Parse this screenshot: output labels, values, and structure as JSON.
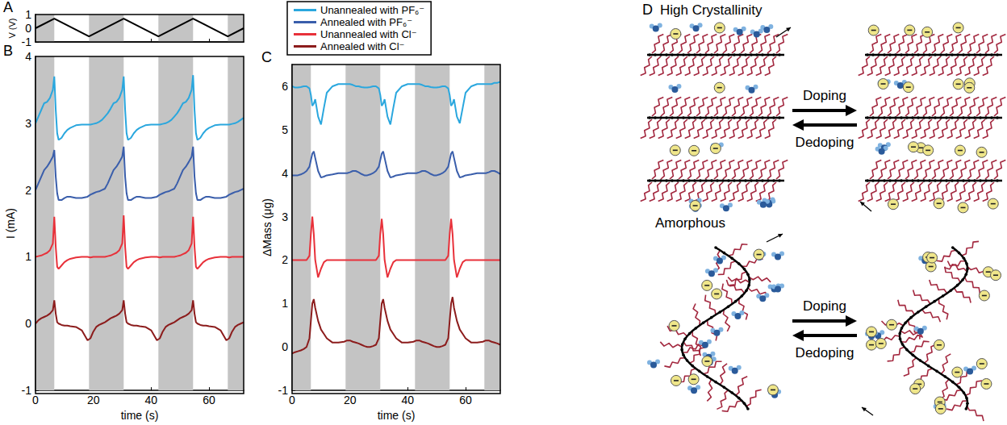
{
  "chart_data": [
    {
      "title": "A",
      "type": "line",
      "ylabel": "V (V)",
      "x": [
        0,
        6.5,
        18.5,
        30.5,
        42.5,
        54.5,
        66.5,
        72
      ],
      "values": [
        0,
        0.7,
        -0.6,
        0.7,
        -0.6,
        0.7,
        -0.6,
        0
      ],
      "color": "#000000",
      "xlim": [
        0,
        72
      ],
      "xticks": [
        0,
        20,
        40,
        60
      ],
      "ylim": [
        -1,
        1
      ],
      "yticks": [
        -1,
        0,
        1
      ],
      "tick_labels": "y",
      "shaded_x_ranges": [
        [
          0,
          6.5
        ],
        [
          18.5,
          30.5
        ],
        [
          42.5,
          54.5
        ],
        [
          66.5,
          72
        ]
      ]
    },
    {
      "title": "B",
      "type": "line",
      "xlabel": "time (s)",
      "ylabel": "I (mA)",
      "x": [
        0,
        1,
        2,
        3,
        4,
        5,
        6,
        6.5,
        7,
        7.5,
        8,
        9,
        10,
        11,
        12,
        14,
        16,
        18,
        19,
        20,
        21,
        22,
        23,
        24,
        25,
        26,
        27,
        28,
        29,
        30,
        30.5,
        31,
        31.5,
        32,
        33,
        34,
        35,
        36,
        38,
        40,
        42,
        43,
        44,
        45,
        46,
        47,
        48,
        49,
        50,
        51,
        52,
        53,
        54,
        54.5,
        55,
        55.5,
        56,
        57,
        58,
        59,
        60,
        62,
        64,
        66,
        67,
        68,
        69,
        70,
        71,
        72
      ],
      "series": [
        {
          "name": "Unannealed with PF₆⁻",
          "color": "#2aa7de",
          "values": [
            3.0,
            3.1,
            3.2,
            3.3,
            3.32,
            3.38,
            3.5,
            3.7,
            3.2,
            2.85,
            2.75,
            2.78,
            2.85,
            2.9,
            2.93,
            2.97,
            2.98,
            2.98,
            2.98,
            2.99,
            3.0,
            3.02,
            3.05,
            3.1,
            3.15,
            3.22,
            3.3,
            3.32,
            3.38,
            3.5,
            3.7,
            3.2,
            2.85,
            2.75,
            2.78,
            2.85,
            2.9,
            2.93,
            2.97,
            2.98,
            2.98,
            2.98,
            2.99,
            3.0,
            3.02,
            3.05,
            3.1,
            3.15,
            3.22,
            3.3,
            3.32,
            3.38,
            3.5,
            3.72,
            3.2,
            2.85,
            2.75,
            2.78,
            2.85,
            2.9,
            2.93,
            2.97,
            2.98,
            2.98,
            2.98,
            2.99,
            3.0,
            3.02,
            3.05,
            3.08
          ]
        },
        {
          "name": "Annealed with PF₆⁻",
          "color": "#3a5eab",
          "values": [
            2.0,
            2.1,
            2.2,
            2.3,
            2.35,
            2.42,
            2.5,
            2.6,
            2.2,
            1.95,
            1.85,
            1.85,
            1.88,
            1.9,
            1.9,
            1.88,
            1.88,
            1.9,
            1.93,
            1.95,
            1.97,
            1.98,
            2.0,
            2.02,
            2.1,
            2.2,
            2.3,
            2.35,
            2.42,
            2.5,
            2.65,
            2.2,
            1.95,
            1.85,
            1.85,
            1.88,
            1.9,
            1.9,
            1.88,
            1.88,
            1.9,
            1.93,
            1.95,
            1.97,
            1.98,
            2.0,
            2.02,
            2.1,
            2.2,
            2.3,
            2.35,
            2.42,
            2.5,
            2.65,
            2.2,
            1.95,
            1.85,
            1.85,
            1.88,
            1.9,
            1.9,
            1.88,
            1.88,
            1.9,
            1.93,
            1.95,
            1.97,
            1.98,
            2.0,
            2.02
          ]
        },
        {
          "name": "Unannealed with Cl⁻",
          "color": "#e8313a",
          "values": [
            1.0,
            1.01,
            1.02,
            1.04,
            1.06,
            1.1,
            1.2,
            1.6,
            1.15,
            0.85,
            0.82,
            0.87,
            0.92,
            0.95,
            0.97,
            0.99,
            1.0,
            1.0,
            0.99,
            1.0,
            1.0,
            1.0,
            1.0,
            1.0,
            1.01,
            1.02,
            1.04,
            1.06,
            1.1,
            1.2,
            1.62,
            1.15,
            0.85,
            0.82,
            0.87,
            0.92,
            0.95,
            0.97,
            0.99,
            1.0,
            1.0,
            0.99,
            1.0,
            1.0,
            1.0,
            1.0,
            1.0,
            1.01,
            1.02,
            1.04,
            1.06,
            1.1,
            1.2,
            1.6,
            1.15,
            0.85,
            0.82,
            0.87,
            0.92,
            0.95,
            0.97,
            0.99,
            1.0,
            1.0,
            0.99,
            1.0,
            1.0,
            1.0,
            1.0,
            1.0
          ]
        },
        {
          "name": "Annealed with Cl⁻",
          "color": "#8c1c1c",
          "values": [
            0.0,
            0.05,
            0.08,
            0.1,
            0.12,
            0.15,
            0.2,
            0.35,
            0.15,
            0.02,
            0.0,
            -0.02,
            -0.03,
            -0.03,
            -0.04,
            -0.05,
            -0.1,
            -0.25,
            -0.22,
            -0.12,
            -0.05,
            -0.02,
            0.0,
            0.02,
            0.05,
            0.08,
            0.1,
            0.12,
            0.15,
            0.2,
            0.35,
            0.15,
            0.02,
            0.0,
            -0.02,
            -0.03,
            -0.03,
            -0.04,
            -0.05,
            -0.1,
            -0.25,
            -0.22,
            -0.12,
            -0.05,
            -0.02,
            0.0,
            0.02,
            0.05,
            0.08,
            0.1,
            0.12,
            0.15,
            0.2,
            0.35,
            0.15,
            0.02,
            0.0,
            -0.02,
            -0.03,
            -0.03,
            -0.04,
            -0.05,
            -0.1,
            -0.25,
            -0.22,
            -0.12,
            -0.05,
            -0.02,
            0.0,
            0.02
          ]
        }
      ],
      "xlim": [
        0,
        72
      ],
      "xticks": [
        0,
        20,
        40,
        60
      ],
      "ylim": [
        -1,
        4
      ],
      "yticks": [
        -1,
        0,
        1,
        2,
        3,
        4
      ],
      "legend": "top",
      "shaded_x_ranges": [
        [
          0,
          6.5
        ],
        [
          18.5,
          30.5
        ],
        [
          42.5,
          54.5
        ],
        [
          66.5,
          72
        ]
      ]
    },
    {
      "title": "C",
      "type": "line",
      "xlabel": "time (s)",
      "ylabel": "ΔMass (μg)",
      "x": [
        0,
        1,
        2,
        3,
        4,
        5,
        6,
        6.5,
        7,
        7.5,
        8,
        9,
        10,
        11,
        12,
        14,
        16,
        18,
        19,
        20,
        21,
        22,
        23,
        24,
        25,
        26,
        27,
        28,
        29,
        30,
        30.5,
        31,
        31.5,
        32,
        33,
        34,
        35,
        36,
        38,
        40,
        42,
        43,
        44,
        45,
        46,
        47,
        48,
        49,
        50,
        51,
        52,
        53,
        54,
        54.5,
        55,
        55.5,
        56,
        57,
        58,
        59,
        60,
        62,
        64,
        66,
        67,
        68,
        69,
        70,
        71,
        72
      ],
      "series": [
        {
          "name": "Unannealed with PF₆⁻",
          "color": "#2aa7de",
          "values": [
            6.0,
            5.97,
            5.97,
            5.98,
            6.0,
            6.0,
            5.95,
            5.8,
            5.55,
            5.6,
            5.7,
            5.3,
            5.12,
            5.5,
            5.85,
            6.0,
            6.05,
            6.05,
            6.05,
            6.05,
            6.03,
            6.0,
            6.0,
            5.98,
            5.97,
            5.97,
            5.98,
            6.0,
            6.0,
            5.95,
            5.8,
            5.55,
            5.6,
            5.7,
            5.3,
            5.12,
            5.5,
            5.85,
            6.0,
            6.05,
            6.05,
            6.05,
            6.05,
            6.03,
            6.0,
            6.0,
            5.98,
            5.97,
            5.97,
            5.98,
            6.0,
            6.0,
            5.95,
            5.8,
            5.55,
            5.6,
            5.7,
            5.3,
            5.15,
            5.5,
            5.85,
            6.0,
            6.05,
            6.05,
            6.05,
            6.05,
            6.05,
            6.08,
            6.08,
            6.1
          ]
        },
        {
          "name": "Annealed with PF₆⁻",
          "color": "#3a5eab",
          "values": [
            3.95,
            3.95,
            3.95,
            3.97,
            4.0,
            4.05,
            4.15,
            4.3,
            4.45,
            4.5,
            4.35,
            4.05,
            3.9,
            3.92,
            3.95,
            3.97,
            4.0,
            4.0,
            4.0,
            4.02,
            4.05,
            4.05,
            4.02,
            3.98,
            3.95,
            3.95,
            3.97,
            4.0,
            4.05,
            4.15,
            4.3,
            4.45,
            4.5,
            4.35,
            4.05,
            3.9,
            3.92,
            3.95,
            3.97,
            4.0,
            4.0,
            4.0,
            4.02,
            4.05,
            4.05,
            4.02,
            3.98,
            3.95,
            3.95,
            3.97,
            4.0,
            4.05,
            4.15,
            4.3,
            4.45,
            4.5,
            4.35,
            4.05,
            3.9,
            3.92,
            3.95,
            3.97,
            4.0,
            4.0,
            4.0,
            4.02,
            4.05,
            4.05,
            4.02,
            3.98
          ]
        },
        {
          "name": "Unannealed with Cl⁻",
          "color": "#e8313a",
          "values": [
            2.0,
            2.0,
            2.0,
            2.0,
            2.0,
            2.0,
            2.1,
            2.6,
            3.0,
            2.6,
            2.0,
            1.6,
            1.8,
            1.95,
            2.0,
            2.0,
            2.0,
            2.0,
            2.0,
            2.0,
            2.0,
            2.0,
            2.0,
            2.0,
            2.0,
            2.0,
            2.0,
            2.0,
            2.0,
            2.1,
            2.6,
            2.95,
            2.6,
            2.0,
            1.6,
            1.8,
            1.95,
            2.0,
            2.0,
            2.0,
            2.0,
            2.0,
            2.0,
            2.0,
            2.0,
            2.0,
            2.0,
            2.0,
            2.0,
            2.0,
            2.0,
            2.0,
            2.1,
            2.6,
            2.95,
            2.6,
            2.0,
            1.6,
            1.8,
            1.95,
            2.0,
            2.0,
            2.0,
            2.0,
            2.0,
            2.0,
            2.0,
            2.0,
            2.0,
            2.0
          ]
        },
        {
          "name": "Annealed with Cl⁻",
          "color": "#8c1c1c",
          "values": [
            -0.15,
            -0.12,
            -0.1,
            -0.08,
            -0.05,
            0.0,
            0.2,
            0.6,
            1.0,
            1.1,
            0.9,
            0.6,
            0.4,
            0.3,
            0.2,
            0.1,
            0.1,
            0.12,
            0.15,
            0.15,
            0.12,
            0.1,
            0.08,
            0.05,
            0.02,
            0.0,
            0.0,
            0.02,
            0.05,
            0.2,
            0.6,
            1.0,
            1.1,
            0.9,
            0.6,
            0.4,
            0.3,
            0.2,
            0.1,
            0.1,
            0.12,
            0.15,
            0.15,
            0.12,
            0.1,
            0.08,
            0.05,
            0.02,
            0.0,
            0.0,
            0.02,
            0.05,
            0.2,
            0.6,
            1.0,
            1.15,
            0.9,
            0.6,
            0.4,
            0.3,
            0.2,
            0.1,
            0.1,
            0.12,
            0.15,
            0.15,
            0.12,
            0.1,
            0.08,
            0.05
          ]
        }
      ],
      "xlim": [
        0,
        72
      ],
      "xticks": [
        0,
        20,
        40,
        60
      ],
      "ylim": [
        -1,
        6.5
      ],
      "yticks": [
        -1,
        0,
        1,
        2,
        3,
        4,
        5,
        6
      ],
      "legend": "top",
      "shaded_x_ranges": [
        [
          0,
          6.5
        ],
        [
          18.5,
          30.5
        ],
        [
          42.5,
          54.5
        ],
        [
          66.5,
          72
        ]
      ]
    }
  ],
  "diagram": {
    "title": "D",
    "panels": [
      {
        "label": "High Crystallinity",
        "forward": "Doping",
        "backward": "Dedoping"
      },
      {
        "label": "Amorphous",
        "forward": "Doping",
        "backward": "Dedoping"
      }
    ]
  }
}
